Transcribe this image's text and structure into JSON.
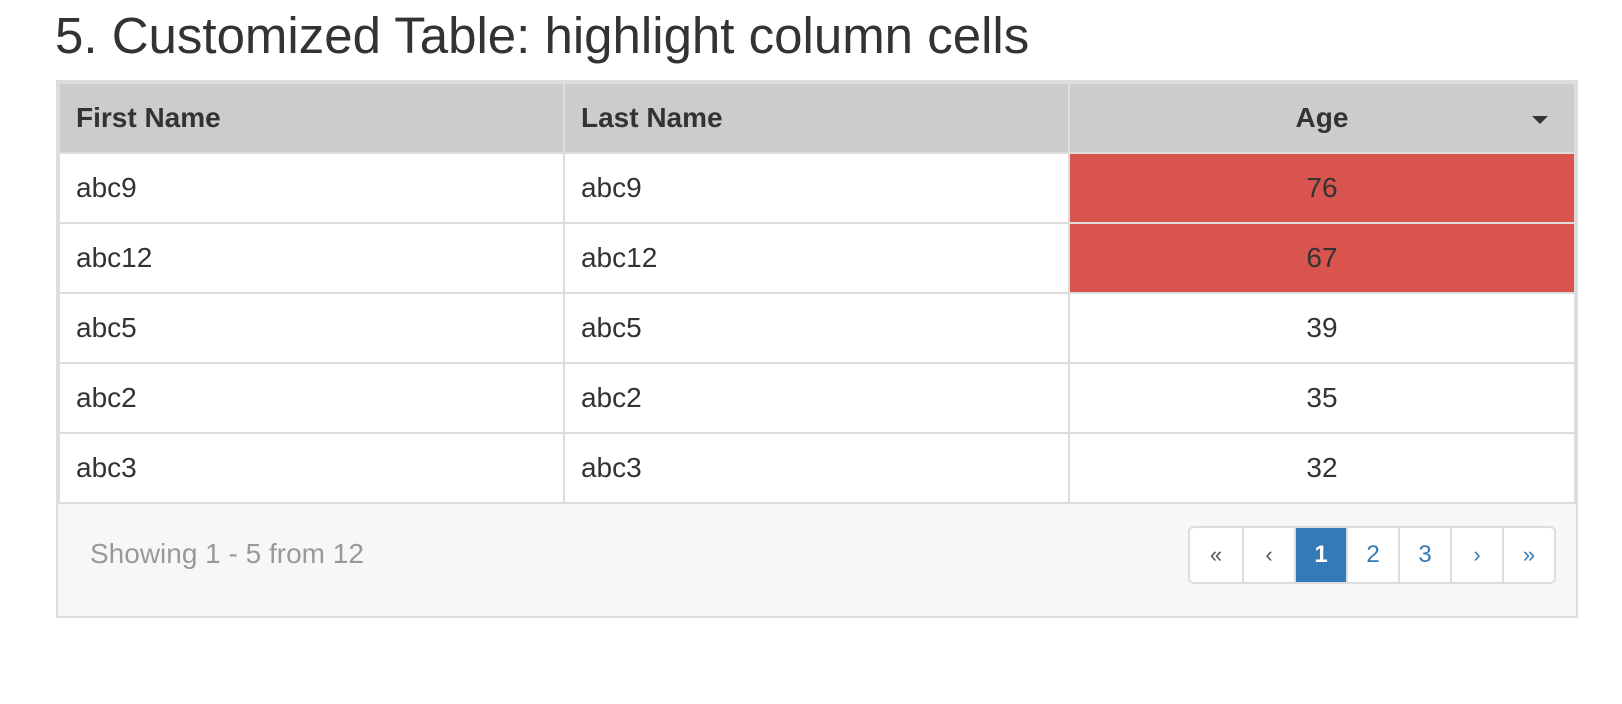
{
  "title": "5. Customized Table: highlight column cells",
  "table": {
    "columns": [
      "First Name",
      "Last Name",
      "Age"
    ],
    "sort_icon": "caret-down-icon",
    "highlight_color": "#d9534f",
    "rows": [
      {
        "first": "abc9",
        "last": "abc9",
        "age": "76",
        "highlighted": true
      },
      {
        "first": "abc12",
        "last": "abc12",
        "age": "67",
        "highlighted": true
      },
      {
        "first": "abc5",
        "last": "abc5",
        "age": "39",
        "highlighted": false
      },
      {
        "first": "abc2",
        "last": "abc2",
        "age": "35",
        "highlighted": false
      },
      {
        "first": "abc3",
        "last": "abc3",
        "age": "32",
        "highlighted": false
      }
    ]
  },
  "footer": {
    "showing_text": "Showing 1 - 5 from 12",
    "pagination": {
      "first": "«",
      "prev": "‹",
      "pages": [
        "1",
        "2",
        "3"
      ],
      "active_page": "1",
      "next": "›",
      "last": "»"
    }
  },
  "colors": {
    "header_bg": "#cccccc",
    "active_page_bg": "#337ab7",
    "link": "#337ab7"
  }
}
